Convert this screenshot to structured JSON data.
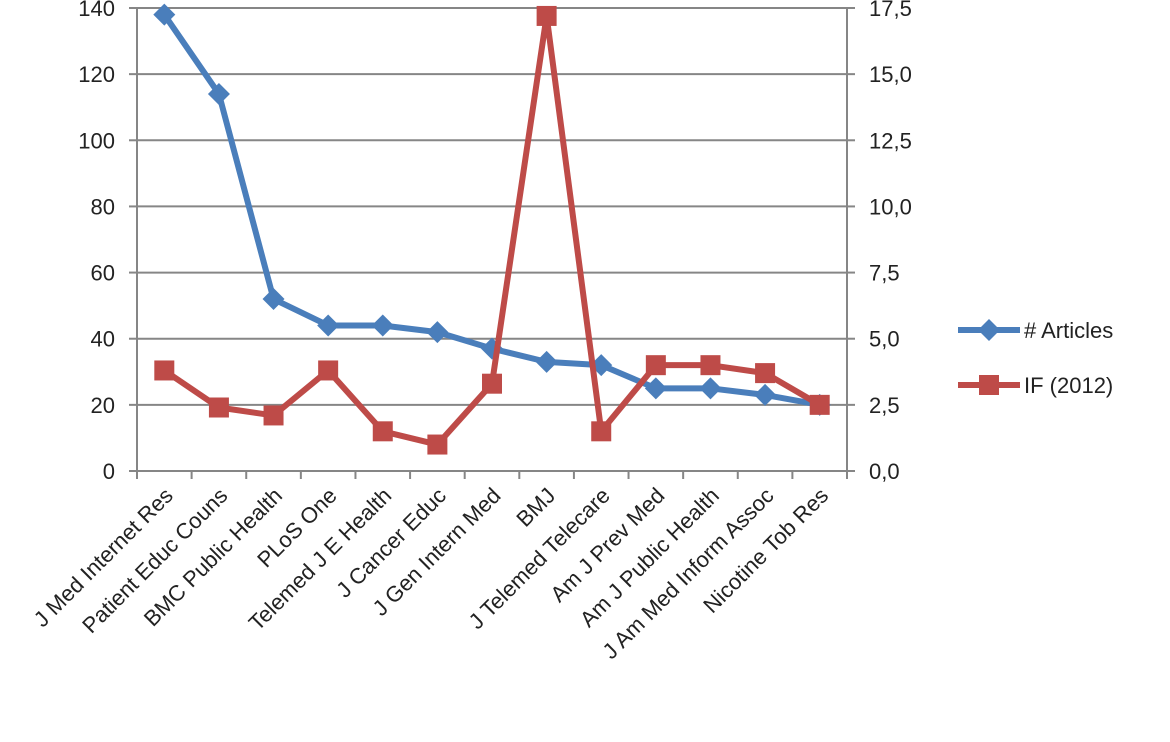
{
  "chart_data": {
    "type": "line",
    "title": "",
    "xlabel": "",
    "ylabel": "",
    "categories": [
      "J Med Internet Res",
      "Patient Educ Couns",
      "BMC Public Health",
      "PLoS One",
      "Telemed J E Health",
      "J Cancer Educ",
      "J Gen Intern Med",
      "BMJ",
      "J Telemed Telecare",
      "Am J Prev Med",
      "Am J Public Health",
      "J Am Med Inform Assoc",
      "Nicotine Tob Res"
    ],
    "y_left": {
      "ylim": [
        0,
        140
      ],
      "ticks": [
        0,
        20,
        40,
        60,
        80,
        100,
        120,
        140
      ],
      "tick_labels": [
        "0",
        "20",
        "40",
        "60",
        "80",
        "100",
        "120",
        "140"
      ]
    },
    "y_right": {
      "ylim": [
        0,
        17.5
      ],
      "ticks": [
        0,
        2.5,
        5,
        7.5,
        10,
        12.5,
        15,
        17.5
      ],
      "tick_labels": [
        "0,0",
        "2,5",
        "5,0",
        "7,5",
        "10,0",
        "12,5",
        "15,0",
        "17,5"
      ]
    },
    "grid": true,
    "legend_position": "right",
    "series": [
      {
        "name": "# Articles",
        "axis": "left",
        "color": "#4A7EBB",
        "marker": "diamond",
        "values": [
          138,
          114,
          52,
          44,
          44,
          42,
          37,
          33,
          32,
          25,
          25,
          23,
          20
        ]
      },
      {
        "name": "IF (2012)",
        "axis": "right",
        "color": "#BE4B48",
        "marker": "square",
        "values": [
          3.8,
          2.4,
          2.1,
          3.8,
          1.5,
          1.0,
          3.3,
          17.2,
          1.5,
          4.0,
          4.0,
          3.7,
          2.5
        ]
      }
    ]
  }
}
